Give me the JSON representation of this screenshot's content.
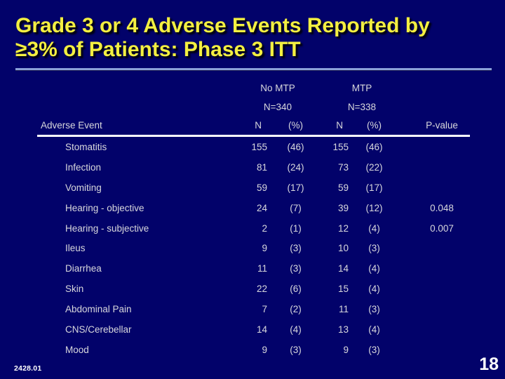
{
  "slide": {
    "title_line1": "Grade 3 or 4 Adverse Events Reported by",
    "title_line2": "≥3% of Patients: Phase 3 ITT",
    "footer_code": "2428.01",
    "page_number": "18"
  },
  "colors": {
    "background": "#02026a",
    "title_text": "#f3ef41",
    "title_shadow": "#000016",
    "title_divider": "#8aa0d8",
    "table_text": "#d8d8dc",
    "header_rule": "#ffffff",
    "footer_text": "#ffffff"
  },
  "table": {
    "groups": [
      {
        "label": "No MTP",
        "n": "N=340"
      },
      {
        "label": "MTP",
        "n": "N=338"
      }
    ],
    "columns": [
      "Adverse Event",
      "N",
      "(%)",
      "N",
      "(%)",
      "P-value"
    ],
    "rows": [
      {
        "event": "Stomatitis",
        "n1": "155",
        "pct1": "(46)",
        "n2": "155",
        "pct2": "(46)",
        "pvalue": ""
      },
      {
        "event": "Infection",
        "n1": "81",
        "pct1": "(24)",
        "n2": "73",
        "pct2": "(22)",
        "pvalue": ""
      },
      {
        "event": "Vomiting",
        "n1": "59",
        "pct1": "(17)",
        "n2": "59",
        "pct2": "(17)",
        "pvalue": ""
      },
      {
        "event": "Hearing - objective",
        "n1": "24",
        "pct1": "(7)",
        "n2": "39",
        "pct2": "(12)",
        "pvalue": "0.048"
      },
      {
        "event": "Hearing - subjective",
        "n1": "2",
        "pct1": "(1)",
        "n2": "12",
        "pct2": "(4)",
        "pvalue": "0.007"
      },
      {
        "event": "Ileus",
        "n1": "9",
        "pct1": "(3)",
        "n2": "10",
        "pct2": "(3)",
        "pvalue": ""
      },
      {
        "event": "Diarrhea",
        "n1": "11",
        "pct1": "(3)",
        "n2": "14",
        "pct2": "(4)",
        "pvalue": ""
      },
      {
        "event": "Skin",
        "n1": "22",
        "pct1": "(6)",
        "n2": "15",
        "pct2": "(4)",
        "pvalue": ""
      },
      {
        "event": "Abdominal Pain",
        "n1": "7",
        "pct1": "(2)",
        "n2": "11",
        "pct2": "(3)",
        "pvalue": ""
      },
      {
        "event": "CNS/Cerebellar",
        "n1": "14",
        "pct1": "(4)",
        "n2": "13",
        "pct2": "(4)",
        "pvalue": ""
      },
      {
        "event": "Mood",
        "n1": "9",
        "pct1": "(3)",
        "n2": "9",
        "pct2": "(3)",
        "pvalue": ""
      }
    ]
  }
}
